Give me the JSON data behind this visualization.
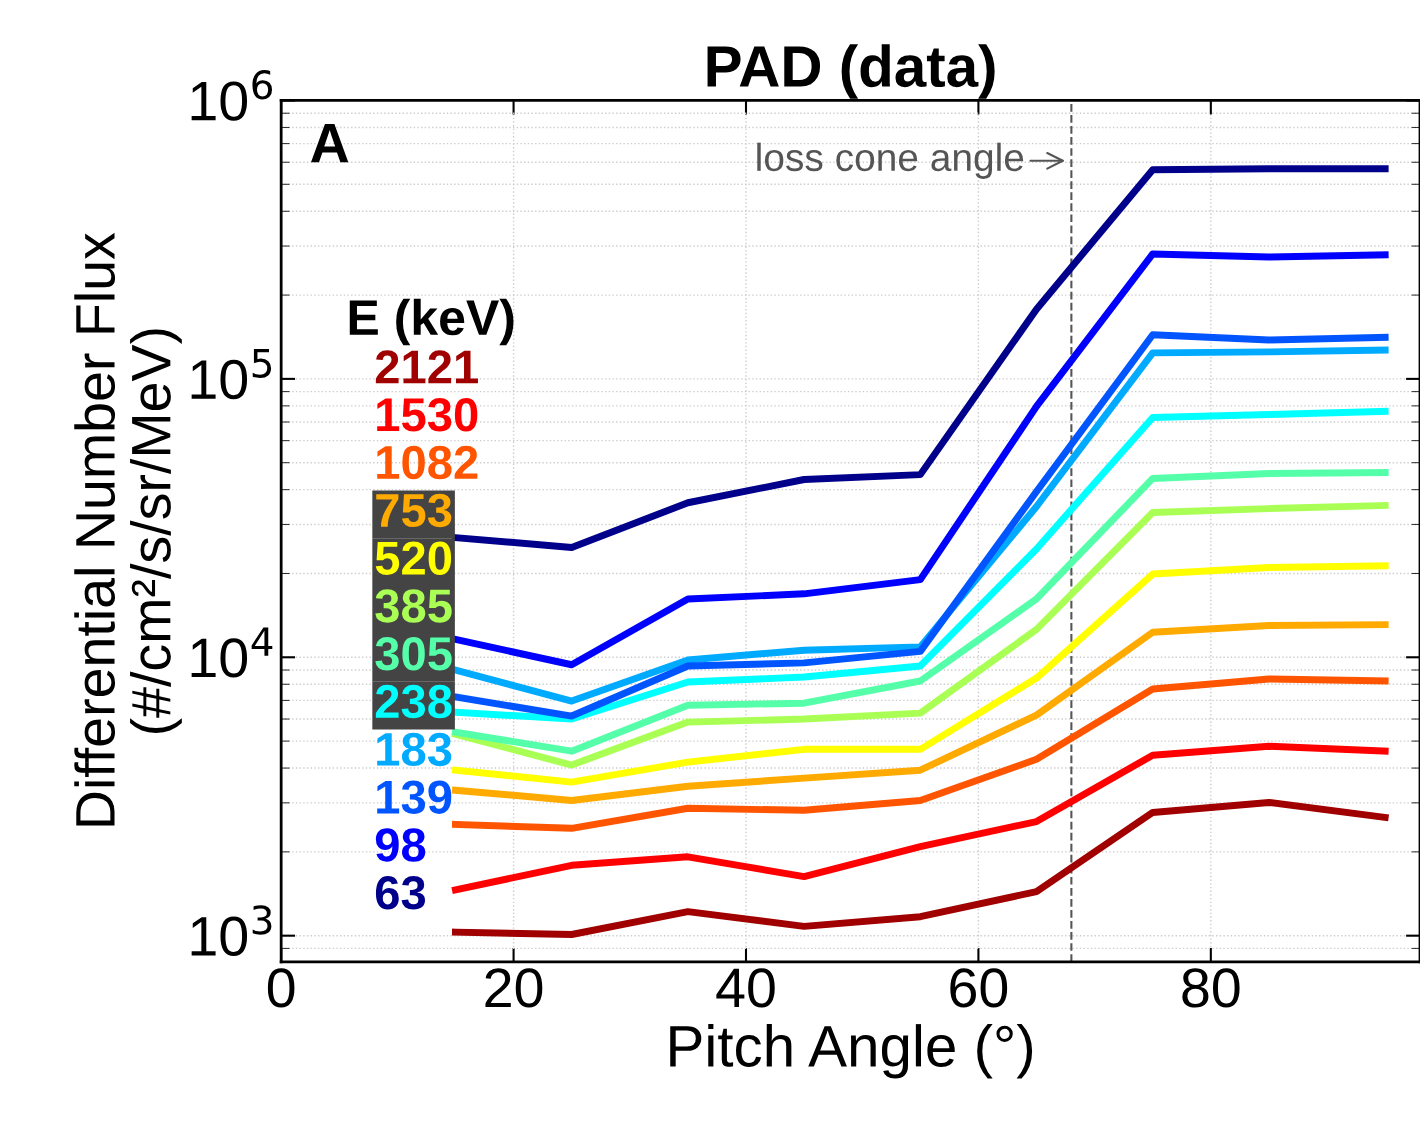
{
  "chart_data": {
    "type": "line",
    "title": "PAD (data)",
    "xlabel": "Pitch Angle (°)",
    "ylabel": "Differential Number Flux\n(#/cm²/s/sr/MeV)",
    "legend_title": "E (keV)",
    "legend": "left",
    "log": "y",
    "grid": true,
    "line_style": "solid",
    "marker": "none",
    "x": [
      15,
      25,
      35,
      45,
      55,
      65,
      75,
      85,
      95
    ],
    "xlim": [
      0,
      98
    ],
    "xticks": [
      0,
      20,
      40,
      60,
      80
    ],
    "ylim": [
      805,
      1000000
    ],
    "yticks": [
      {
        "value": 1000,
        "label": "10$^{3}$"
      },
      {
        "value": 10000,
        "label": "10$^{4}$"
      },
      {
        "value": 100000,
        "label": "10$^{5}$"
      },
      {
        "value": 1000000,
        "label": "10$^{6}$"
      }
    ],
    "annotations": [
      "A"
    ],
    "ref_lines": [
      {
        "axis": "x",
        "value": 68,
        "label": "loss cone angle",
        "color": "#555555",
        "line_style": "dashed"
      }
    ],
    "series": [
      {
        "name": "2121",
        "color": "#a00000",
        "values": [
          1030,
          1010,
          1220,
          1080,
          1170,
          1440,
          2770,
          3010,
          2660
        ]
      },
      {
        "name": "1530",
        "color": "#ff0000",
        "values": [
          1460,
          1790,
          1920,
          1630,
          2090,
          2570,
          4450,
          4790,
          4600
        ]
      },
      {
        "name": "1082",
        "color": "#ff5500",
        "values": [
          2510,
          2430,
          2870,
          2820,
          3060,
          4300,
          7690,
          8360,
          8220
        ]
      },
      {
        "name": "753",
        "color": "#ffaa00",
        "values": [
          3330,
          3060,
          3440,
          3680,
          3930,
          6200,
          12300,
          13000,
          13100
        ]
      },
      {
        "name": "520",
        "color": "#ffff00",
        "values": [
          3930,
          3560,
          4200,
          4670,
          4670,
          8420,
          19900,
          21000,
          21300
        ]
      },
      {
        "name": "385",
        "color": "#aaff55",
        "values": [
          5290,
          4100,
          5850,
          6000,
          6300,
          12600,
          33100,
          34200,
          35100
        ]
      },
      {
        "name": "305",
        "color": "#55ffaa",
        "values": [
          5380,
          4600,
          6730,
          6840,
          8220,
          16200,
          43900,
          45700,
          46100
        ]
      },
      {
        "name": "238",
        "color": "#00ffff",
        "values": [
          6350,
          6000,
          8150,
          8490,
          9300,
          24500,
          72700,
          74500,
          76400
        ]
      },
      {
        "name": "183",
        "color": "#00aaff",
        "values": [
          9000,
          6960,
          9780,
          10600,
          10900,
          34800,
          124000,
          125000,
          127000
        ]
      },
      {
        "name": "139",
        "color": "#0055ff",
        "values": [
          7200,
          6150,
          9300,
          9550,
          10500,
          39400,
          144000,
          138000,
          141000
        ]
      },
      {
        "name": "98",
        "color": "#0000ff",
        "values": [
          11600,
          9400,
          16200,
          16900,
          19000,
          79700,
          281000,
          274000,
          279000
        ]
      },
      {
        "name": "63",
        "color": "#00008b",
        "values": [
          26900,
          24800,
          35900,
          43500,
          45300,
          178000,
          564000,
          569000,
          569000
        ]
      }
    ]
  }
}
